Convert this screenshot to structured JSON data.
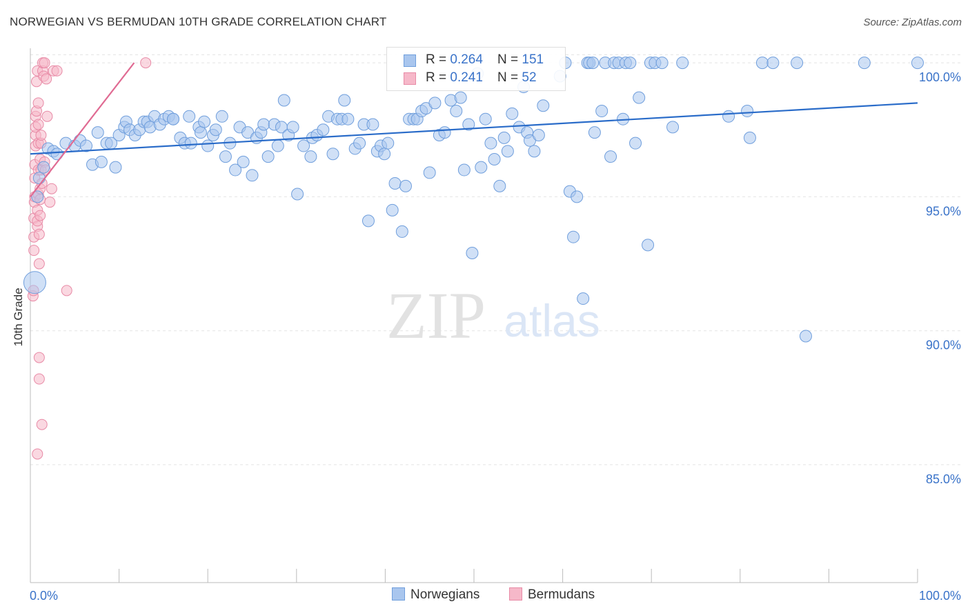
{
  "title": "NORWEGIAN VS BERMUDAN 10TH GRADE CORRELATION CHART",
  "source": "Source: ZipAtlas.com",
  "watermark": {
    "zip": "ZIP",
    "atlas": "atlas"
  },
  "legend": {
    "rows": [
      {
        "r_label": "R = ",
        "r_value": "0.264",
        "n_label": "N = ",
        "n_value": "151",
        "color": "#a9c6ee",
        "border": "#6f9edc"
      },
      {
        "r_label": "R = ",
        "r_value": " 0.241",
        "n_label": "N = ",
        "n_value": " 52",
        "color": "#f6b8c9",
        "border": "#e88aa6"
      }
    ]
  },
  "bottom_legend": [
    {
      "label": "Norwegians",
      "color": "#a9c6ee",
      "border": "#6f9edc"
    },
    {
      "label": "Bermudans",
      "color": "#f6b8c9",
      "border": "#e88aa6"
    }
  ],
  "chart_data": {
    "type": "scatter",
    "title": "NORWEGIAN VS BERMUDAN 10TH GRADE CORRELATION CHART",
    "xlabel": "",
    "ylabel": "10th Grade",
    "xlim": [
      0,
      100
    ],
    "ylim": [
      80.6,
      100.8
    ],
    "x_tick_labels": [
      "0.0%",
      "100.0%"
    ],
    "y_ticks": [
      85,
      90,
      95,
      100
    ],
    "y_tick_labels": [
      "85.0%",
      "90.0%",
      "95.0%",
      "100.0%"
    ],
    "grid": true,
    "colors": {
      "norwegian": "#6f9edc",
      "norwegian_fill": "#a9c6ee",
      "norwegian_line": "#2a6cc9",
      "bermudan": "#e88aa6",
      "bermudan_fill": "#f6b8c9",
      "bermudan_line": "#e06b93"
    },
    "series": [
      {
        "name": "Norwegians",
        "trend": {
          "x": [
            0,
            100
          ],
          "y": [
            96.6,
            98.5
          ]
        },
        "points": [
          [
            0.5,
            91.8,
            "l"
          ],
          [
            0.8,
            95.0
          ],
          [
            1.0,
            95.7
          ],
          [
            1.5,
            96.1
          ],
          [
            2.0,
            96.8
          ],
          [
            2.6,
            96.7
          ],
          [
            3.0,
            96.6
          ],
          [
            4.0,
            97.0
          ],
          [
            5.0,
            96.9
          ],
          [
            5.6,
            97.1
          ],
          [
            6.3,
            96.9
          ],
          [
            7.0,
            96.2
          ],
          [
            7.6,
            97.4
          ],
          [
            8.0,
            96.3
          ],
          [
            8.6,
            97.0
          ],
          [
            9.1,
            97.0
          ],
          [
            9.6,
            96.1
          ],
          [
            10.0,
            97.3
          ],
          [
            10.6,
            97.6
          ],
          [
            10.8,
            97.8
          ],
          [
            11.2,
            97.5
          ],
          [
            11.8,
            97.3
          ],
          [
            12.3,
            97.5
          ],
          [
            12.8,
            97.8
          ],
          [
            13.2,
            97.8
          ],
          [
            13.5,
            97.6
          ],
          [
            14.0,
            98.0
          ],
          [
            14.6,
            97.7
          ],
          [
            15.1,
            97.9
          ],
          [
            15.6,
            98.0
          ],
          [
            16.1,
            97.9
          ],
          [
            16.1,
            97.9
          ],
          [
            16.9,
            97.2
          ],
          [
            17.4,
            97.0
          ],
          [
            17.9,
            98.0
          ],
          [
            18.1,
            97.0
          ],
          [
            19.0,
            97.6
          ],
          [
            19.2,
            97.4
          ],
          [
            19.6,
            97.8
          ],
          [
            20.0,
            96.9
          ],
          [
            20.6,
            97.3
          ],
          [
            20.9,
            97.5
          ],
          [
            21.6,
            98.0
          ],
          [
            22.0,
            96.5
          ],
          [
            22.5,
            97.0
          ],
          [
            23.1,
            96.0
          ],
          [
            23.6,
            97.6
          ],
          [
            24.0,
            96.3
          ],
          [
            24.5,
            97.4
          ],
          [
            25.0,
            95.8
          ],
          [
            25.5,
            97.2
          ],
          [
            26.0,
            97.4
          ],
          [
            26.3,
            97.7
          ],
          [
            26.8,
            96.5
          ],
          [
            27.5,
            97.7
          ],
          [
            27.9,
            96.9
          ],
          [
            28.3,
            97.6
          ],
          [
            28.6,
            98.6
          ],
          [
            29.1,
            97.3
          ],
          [
            29.6,
            97.6
          ],
          [
            30.1,
            95.1
          ],
          [
            30.8,
            96.9
          ],
          [
            31.6,
            96.5
          ],
          [
            31.8,
            97.2
          ],
          [
            32.3,
            97.3
          ],
          [
            33.0,
            97.5
          ],
          [
            33.6,
            98.0
          ],
          [
            34.1,
            96.6
          ],
          [
            34.6,
            97.9
          ],
          [
            35.1,
            97.9
          ],
          [
            35.4,
            98.6
          ],
          [
            35.8,
            97.9
          ],
          [
            36.6,
            96.8
          ],
          [
            37.1,
            97.0
          ],
          [
            37.6,
            97.7
          ],
          [
            38.1,
            94.1
          ],
          [
            38.6,
            97.7
          ],
          [
            39.1,
            96.7
          ],
          [
            39.5,
            96.9
          ],
          [
            39.9,
            96.6
          ],
          [
            40.3,
            97.0
          ],
          [
            40.8,
            94.5
          ],
          [
            41.1,
            95.5
          ],
          [
            41.9,
            93.7
          ],
          [
            42.3,
            95.4
          ],
          [
            42.7,
            97.9
          ],
          [
            43.2,
            97.9
          ],
          [
            43.6,
            97.9
          ],
          [
            44.1,
            98.2
          ],
          [
            44.6,
            98.3
          ],
          [
            45.0,
            95.9
          ],
          [
            45.6,
            98.5
          ],
          [
            46.1,
            97.3
          ],
          [
            46.7,
            97.4
          ],
          [
            47.4,
            98.6
          ],
          [
            48.0,
            98.2
          ],
          [
            48.5,
            98.7
          ],
          [
            48.9,
            96.0
          ],
          [
            49.4,
            97.7
          ],
          [
            49.8,
            92.9
          ],
          [
            50.4,
            99.6
          ],
          [
            50.8,
            96.1
          ],
          [
            51.3,
            97.9
          ],
          [
            51.9,
            97.0
          ],
          [
            52.3,
            96.4
          ],
          [
            52.9,
            95.4
          ],
          [
            53.4,
            97.2
          ],
          [
            53.8,
            96.7
          ],
          [
            54.3,
            98.1
          ],
          [
            55.1,
            97.6
          ],
          [
            55.6,
            99.1
          ],
          [
            56.0,
            97.4
          ],
          [
            56.3,
            97.1
          ],
          [
            56.8,
            96.7
          ],
          [
            57.3,
            97.3
          ],
          [
            57.8,
            98.4
          ],
          [
            59.7,
            99.5
          ],
          [
            60.3,
            100.0
          ],
          [
            60.8,
            95.2
          ],
          [
            61.2,
            93.5
          ],
          [
            61.6,
            95.0
          ],
          [
            62.3,
            91.2
          ],
          [
            62.8,
            100.0
          ],
          [
            63.0,
            100.0
          ],
          [
            63.4,
            100.0
          ],
          [
            63.6,
            97.4
          ],
          [
            64.4,
            98.2
          ],
          [
            64.8,
            100.0
          ],
          [
            65.4,
            96.5
          ],
          [
            65.8,
            100.0
          ],
          [
            66.3,
            100.0
          ],
          [
            66.8,
            97.9
          ],
          [
            67.1,
            100.0
          ],
          [
            67.6,
            100.0
          ],
          [
            68.2,
            97.0
          ],
          [
            68.6,
            98.7
          ],
          [
            69.6,
            93.2
          ],
          [
            69.9,
            100.0
          ],
          [
            70.4,
            100.0
          ],
          [
            71.2,
            100.0
          ],
          [
            72.4,
            97.6
          ],
          [
            73.5,
            100.0
          ],
          [
            78.7,
            98.0
          ],
          [
            80.8,
            98.2
          ],
          [
            81.1,
            97.2
          ],
          [
            82.5,
            100.0
          ],
          [
            83.7,
            100.0
          ],
          [
            86.4,
            100.0
          ],
          [
            87.4,
            89.8
          ],
          [
            94.0,
            100.0
          ],
          [
            100.0,
            100.0
          ]
        ]
      },
      {
        "name": "Bermudans",
        "trend": {
          "x": [
            0,
            11.7
          ],
          "y": [
            95.0,
            100.0
          ]
        },
        "points": [
          [
            0.3,
            91.3
          ],
          [
            0.35,
            91.5
          ],
          [
            0.4,
            93.0
          ],
          [
            0.4,
            93.5
          ],
          [
            0.4,
            94.2
          ],
          [
            0.45,
            94.8
          ],
          [
            0.5,
            95.0
          ],
          [
            0.5,
            95.7
          ],
          [
            0.5,
            96.2
          ],
          [
            0.6,
            96.9
          ],
          [
            0.6,
            97.3
          ],
          [
            0.6,
            97.6
          ],
          [
            0.6,
            98.0
          ],
          [
            0.7,
            98.2
          ],
          [
            0.7,
            99.3
          ],
          [
            0.8,
            99.7
          ],
          [
            0.8,
            85.4
          ],
          [
            0.8,
            93.9
          ],
          [
            0.8,
            94.1
          ],
          [
            0.8,
            94.5
          ],
          [
            0.9,
            95.1
          ],
          [
            0.9,
            96.0
          ],
          [
            0.9,
            97.0
          ],
          [
            0.9,
            97.7
          ],
          [
            0.9,
            98.5
          ],
          [
            1.0,
            89.0
          ],
          [
            1.0,
            88.2
          ],
          [
            1.0,
            92.5
          ],
          [
            1.0,
            93.6
          ],
          [
            1.1,
            94.3
          ],
          [
            1.1,
            94.9
          ],
          [
            1.1,
            95.3
          ],
          [
            1.1,
            96.4
          ],
          [
            1.2,
            97.0
          ],
          [
            1.2,
            97.3
          ],
          [
            1.2,
            96.0
          ],
          [
            1.3,
            86.5
          ],
          [
            1.3,
            95.5
          ],
          [
            1.4,
            99.7
          ],
          [
            1.4,
            100.0
          ],
          [
            1.5,
            99.5
          ],
          [
            1.6,
            100.0
          ],
          [
            1.6,
            96.3
          ],
          [
            1.7,
            96.0
          ],
          [
            1.8,
            99.4
          ],
          [
            1.9,
            98.0
          ],
          [
            2.2,
            94.8
          ],
          [
            2.4,
            95.3
          ],
          [
            2.6,
            99.7
          ],
          [
            3.0,
            99.7
          ],
          [
            4.1,
            91.5
          ],
          [
            13.0,
            100.0
          ]
        ]
      }
    ]
  }
}
